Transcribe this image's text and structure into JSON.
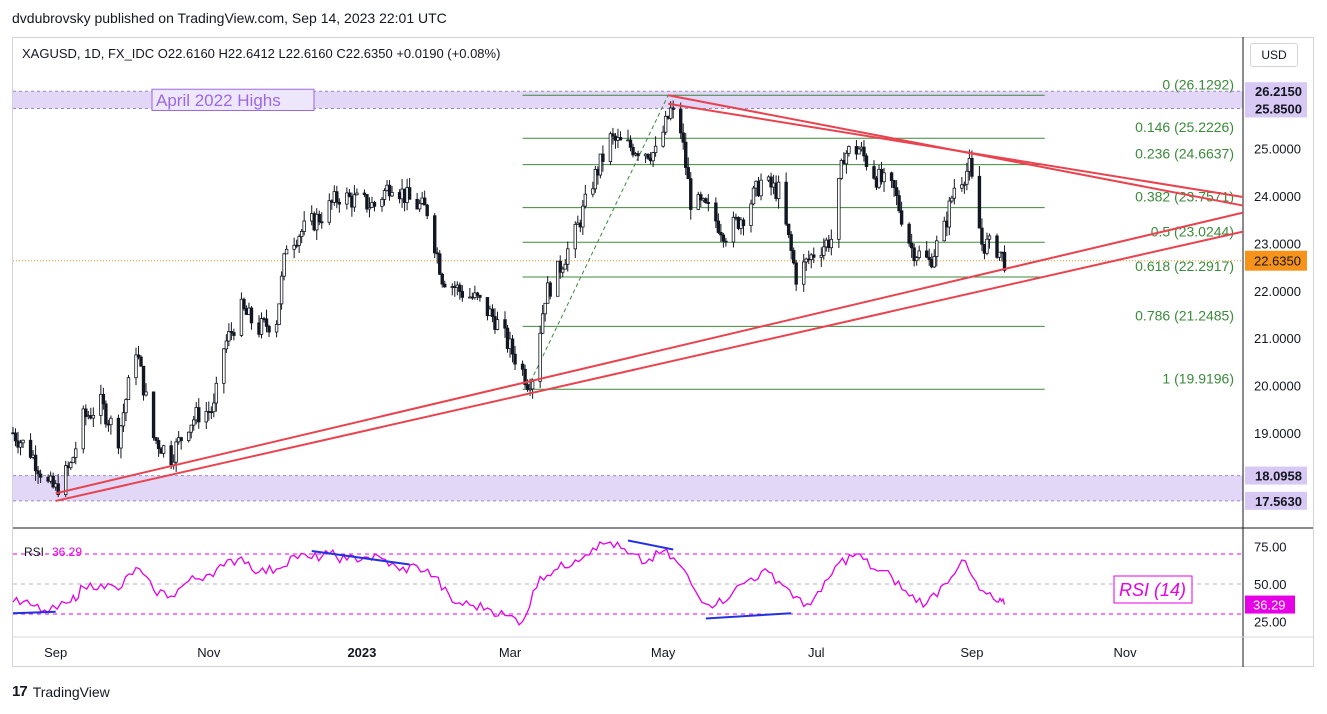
{
  "header": {
    "published": "dvdubrovsky published on TradingView.com, Sep 14, 2023 22:01 UTC",
    "ohlc": "XAGUSD, 1D, FX_IDC  O22.6160  H22.6412  L22.6160  C22.6350  +0.0190 (+0.08%)",
    "currency": "USD"
  },
  "footer": {
    "brand": "TradingView",
    "logo": "17"
  },
  "colors": {
    "up": "#ffffff",
    "down": "#131722",
    "trend": "#e8434f",
    "fib": "#3b8a3b",
    "zone": "#d8c9f4",
    "rsi": "#e600e6",
    "div": "#2232e0",
    "price_tag": "#f7931a",
    "label_purple": "#9b6ae0"
  },
  "chart_data": [
    {
      "type": "candlestick",
      "symbol": "XAGUSD",
      "interval": "1D",
      "x_range": [
        "2022-08-15",
        "2023-12-18"
      ],
      "ylim": [
        17.2,
        26.6
      ],
      "y_ticks": [
        {
          "value": 26.215,
          "label": "26.2150",
          "style": "box"
        },
        {
          "value": 25.85,
          "label": "25.8500",
          "style": "box"
        },
        {
          "value": 25.0,
          "label": "25.0000"
        },
        {
          "value": 24.0,
          "label": "24.0000"
        },
        {
          "value": 23.0,
          "label": "23.0000"
        },
        {
          "value": 22.635,
          "label": "22.6350",
          "style": "current"
        },
        {
          "value": 22.0,
          "label": "22.0000"
        },
        {
          "value": 21.0,
          "label": "21.0000"
        },
        {
          "value": 20.0,
          "label": "20.0000"
        },
        {
          "value": 19.0,
          "label": "19.0000"
        },
        {
          "value": 18.0958,
          "label": "18.0958",
          "style": "box"
        },
        {
          "value": 17.563,
          "label": "17.5630",
          "style": "box"
        }
      ],
      "x_ticks": [
        {
          "date": "2022-09-01",
          "label": "Sep"
        },
        {
          "date": "2022-11-01",
          "label": "Nov"
        },
        {
          "date": "2023-01-01",
          "label": "2023",
          "bold": true
        },
        {
          "date": "2023-03-01",
          "label": "Mar"
        },
        {
          "date": "2023-05-01",
          "label": "May"
        },
        {
          "date": "2023-07-01",
          "label": "Jul"
        },
        {
          "date": "2023-09-01",
          "label": "Sep"
        },
        {
          "date": "2023-11-01",
          "label": "Nov"
        }
      ],
      "close_path": [
        [
          "2022-08-15",
          19.0
        ],
        [
          "2022-08-22",
          18.6
        ],
        [
          "2022-08-29",
          17.9
        ],
        [
          "2022-09-01",
          17.8
        ],
        [
          "2022-09-07",
          18.3
        ],
        [
          "2022-09-12",
          19.3
        ],
        [
          "2022-09-19",
          19.6
        ],
        [
          "2022-09-26",
          18.9
        ],
        [
          "2022-10-03",
          20.8
        ],
        [
          "2022-10-10",
          18.9
        ],
        [
          "2022-10-17",
          18.5
        ],
        [
          "2022-10-24",
          19.2
        ],
        [
          "2022-10-28",
          19.4
        ],
        [
          "2022-11-03",
          19.5
        ],
        [
          "2022-11-07",
          20.8
        ],
        [
          "2022-11-14",
          21.6
        ],
        [
          "2022-11-21",
          21.2
        ],
        [
          "2022-11-28",
          21.4
        ],
        [
          "2022-12-02",
          23.0
        ],
        [
          "2022-12-09",
          23.3
        ],
        [
          "2022-12-16",
          23.6
        ],
        [
          "2022-12-23",
          24.0
        ],
        [
          "2022-12-30",
          23.9
        ],
        [
          "2023-01-06",
          23.8
        ],
        [
          "2023-01-13",
          24.3
        ],
        [
          "2023-01-20",
          23.9
        ],
        [
          "2023-01-27",
          23.7
        ],
        [
          "2023-02-02",
          22.3
        ],
        [
          "2023-02-09",
          22.0
        ],
        [
          "2023-02-16",
          21.8
        ],
        [
          "2023-02-23",
          21.4
        ],
        [
          "2023-03-01",
          20.8
        ],
        [
          "2023-03-08",
          20.1
        ],
        [
          "2023-03-10",
          20.2
        ],
        [
          "2023-03-15",
          21.9
        ],
        [
          "2023-03-20",
          22.4
        ],
        [
          "2023-03-27",
          23.2
        ],
        [
          "2023-04-03",
          24.3
        ],
        [
          "2023-04-10",
          25.2
        ],
        [
          "2023-04-14",
          25.1
        ],
        [
          "2023-04-21",
          25.0
        ],
        [
          "2023-04-28",
          24.9
        ],
        [
          "2023-05-04",
          25.8
        ],
        [
          "2023-05-08",
          25.4
        ],
        [
          "2023-05-12",
          23.9
        ],
        [
          "2023-05-19",
          23.7
        ],
        [
          "2023-05-26",
          23.2
        ],
        [
          "2023-06-02",
          23.6
        ],
        [
          "2023-06-09",
          24.3
        ],
        [
          "2023-06-16",
          24.1
        ],
        [
          "2023-06-23",
          22.3
        ],
        [
          "2023-06-30",
          22.8
        ],
        [
          "2023-07-07",
          23.1
        ],
        [
          "2023-07-12",
          24.9
        ],
        [
          "2023-07-18",
          25.0
        ],
        [
          "2023-07-25",
          24.4
        ],
        [
          "2023-08-01",
          24.1
        ],
        [
          "2023-08-08",
          22.9
        ],
        [
          "2023-08-15",
          22.6
        ],
        [
          "2023-08-21",
          23.3
        ],
        [
          "2023-08-25",
          24.2
        ],
        [
          "2023-08-31",
          24.6
        ],
        [
          "2023-09-05",
          23.0
        ],
        [
          "2023-09-11",
          22.9
        ],
        [
          "2023-09-14",
          22.635
        ]
      ],
      "zones": [
        {
          "from": 25.85,
          "to": 26.215,
          "label": "April 2022 Highs"
        },
        {
          "from": 17.563,
          "to": 18.0958,
          "label": ""
        }
      ],
      "fibonacci": {
        "start_date": "2023-03-06",
        "end_date": "2023-09-30",
        "levels": [
          {
            "ratio": "0",
            "value": 26.1292,
            "label": "0 (26.1292)"
          },
          {
            "ratio": "0.146",
            "value": 25.2226,
            "label": "0.146 (25.2226)"
          },
          {
            "ratio": "0.236",
            "value": 24.6637,
            "label": "0.236 (24.6637)"
          },
          {
            "ratio": "0.382",
            "value": 23.7571,
            "label": "0.382 (23.7571)"
          },
          {
            "ratio": "0.5",
            "value": 23.0244,
            "label": "0.5 (23.0244)"
          },
          {
            "ratio": "0.618",
            "value": 22.2917,
            "label": "0.618 (22.2917)"
          },
          {
            "ratio": "0.786",
            "value": 21.2485,
            "label": "0.786 (21.2485)"
          },
          {
            "ratio": "1",
            "value": 19.9196,
            "label": "1 (19.9196)"
          }
        ]
      },
      "trendlines": [
        {
          "from": [
            "2022-09-01",
            17.56
          ],
          "to": [
            "2023-12-18",
            23.25
          ]
        },
        {
          "from": [
            "2022-09-01",
            17.72
          ],
          "to": [
            "2023-12-18",
            23.65
          ]
        },
        {
          "from": [
            "2023-05-03",
            26.13
          ],
          "to": [
            "2023-12-18",
            23.8
          ]
        },
        {
          "from": [
            "2023-05-03",
            25.95
          ],
          "to": [
            "2023-12-18",
            23.98
          ]
        }
      ],
      "retracement_guide": {
        "from": [
          "2023-03-08",
          19.95
        ],
        "to": [
          "2023-05-03",
          26.13
        ]
      }
    },
    {
      "type": "line",
      "name": "RSI",
      "value_label": "36.29",
      "legend_text": "RSI (14)",
      "ylim": [
        18,
        82
      ],
      "y_ticks": [
        75,
        50,
        25
      ],
      "y_tick_labels": [
        "75.00",
        "50.00",
        "25.00"
      ],
      "levels": [
        70,
        50,
        30
      ],
      "current": {
        "value": 36.29,
        "label": "36.29"
      },
      "series": [
        [
          "2022-08-15",
          38
        ],
        [
          "2022-08-22",
          36
        ],
        [
          "2022-08-29",
          31
        ],
        [
          "2022-09-07",
          38
        ],
        [
          "2022-09-12",
          48
        ],
        [
          "2022-09-19",
          50
        ],
        [
          "2022-09-26",
          46
        ],
        [
          "2022-10-03",
          61
        ],
        [
          "2022-10-10",
          46
        ],
        [
          "2022-10-17",
          42
        ],
        [
          "2022-10-24",
          52
        ],
        [
          "2022-10-31",
          56
        ],
        [
          "2022-11-07",
          62
        ],
        [
          "2022-11-14",
          68
        ],
        [
          "2022-11-21",
          58
        ],
        [
          "2022-11-28",
          60
        ],
        [
          "2022-12-05",
          69
        ],
        [
          "2022-12-12",
          67
        ],
        [
          "2022-12-19",
          70
        ],
        [
          "2022-12-26",
          66
        ],
        [
          "2023-01-02",
          68
        ],
        [
          "2023-01-09",
          67
        ],
        [
          "2023-01-16",
          59
        ],
        [
          "2023-01-23",
          62
        ],
        [
          "2023-01-30",
          55
        ],
        [
          "2023-02-06",
          38
        ],
        [
          "2023-02-13",
          36
        ],
        [
          "2023-02-20",
          34
        ],
        [
          "2023-02-27",
          29
        ],
        [
          "2023-03-06",
          25
        ],
        [
          "2023-03-13",
          55
        ],
        [
          "2023-03-20",
          60
        ],
        [
          "2023-03-27",
          66
        ],
        [
          "2023-04-03",
          74
        ],
        [
          "2023-04-10",
          78
        ],
        [
          "2023-04-17",
          70
        ],
        [
          "2023-04-24",
          64
        ],
        [
          "2023-05-01",
          72
        ],
        [
          "2023-05-08",
          62
        ],
        [
          "2023-05-15",
          42
        ],
        [
          "2023-05-22",
          36
        ],
        [
          "2023-05-29",
          45
        ],
        [
          "2023-06-05",
          54
        ],
        [
          "2023-06-12",
          58
        ],
        [
          "2023-06-19",
          48
        ],
        [
          "2023-06-26",
          35
        ],
        [
          "2023-07-03",
          45
        ],
        [
          "2023-07-10",
          64
        ],
        [
          "2023-07-17",
          70
        ],
        [
          "2023-07-24",
          60
        ],
        [
          "2023-07-31",
          55
        ],
        [
          "2023-08-07",
          42
        ],
        [
          "2023-08-14",
          37
        ],
        [
          "2023-08-21",
          50
        ],
        [
          "2023-08-28",
          66
        ],
        [
          "2023-09-04",
          46
        ],
        [
          "2023-09-11",
          38
        ],
        [
          "2023-09-14",
          36.29
        ]
      ],
      "divergences": [
        {
          "from": [
            "2022-08-15",
            30.5
          ],
          "to": [
            "2022-09-01",
            31.5
          ]
        },
        {
          "from": [
            "2022-12-12",
            72
          ],
          "to": [
            "2023-01-20",
            63
          ]
        },
        {
          "from": [
            "2023-04-17",
            79
          ],
          "to": [
            "2023-05-05",
            73
          ]
        },
        {
          "from": [
            "2023-05-18",
            27
          ],
          "to": [
            "2023-06-21",
            30.5
          ]
        }
      ]
    }
  ]
}
